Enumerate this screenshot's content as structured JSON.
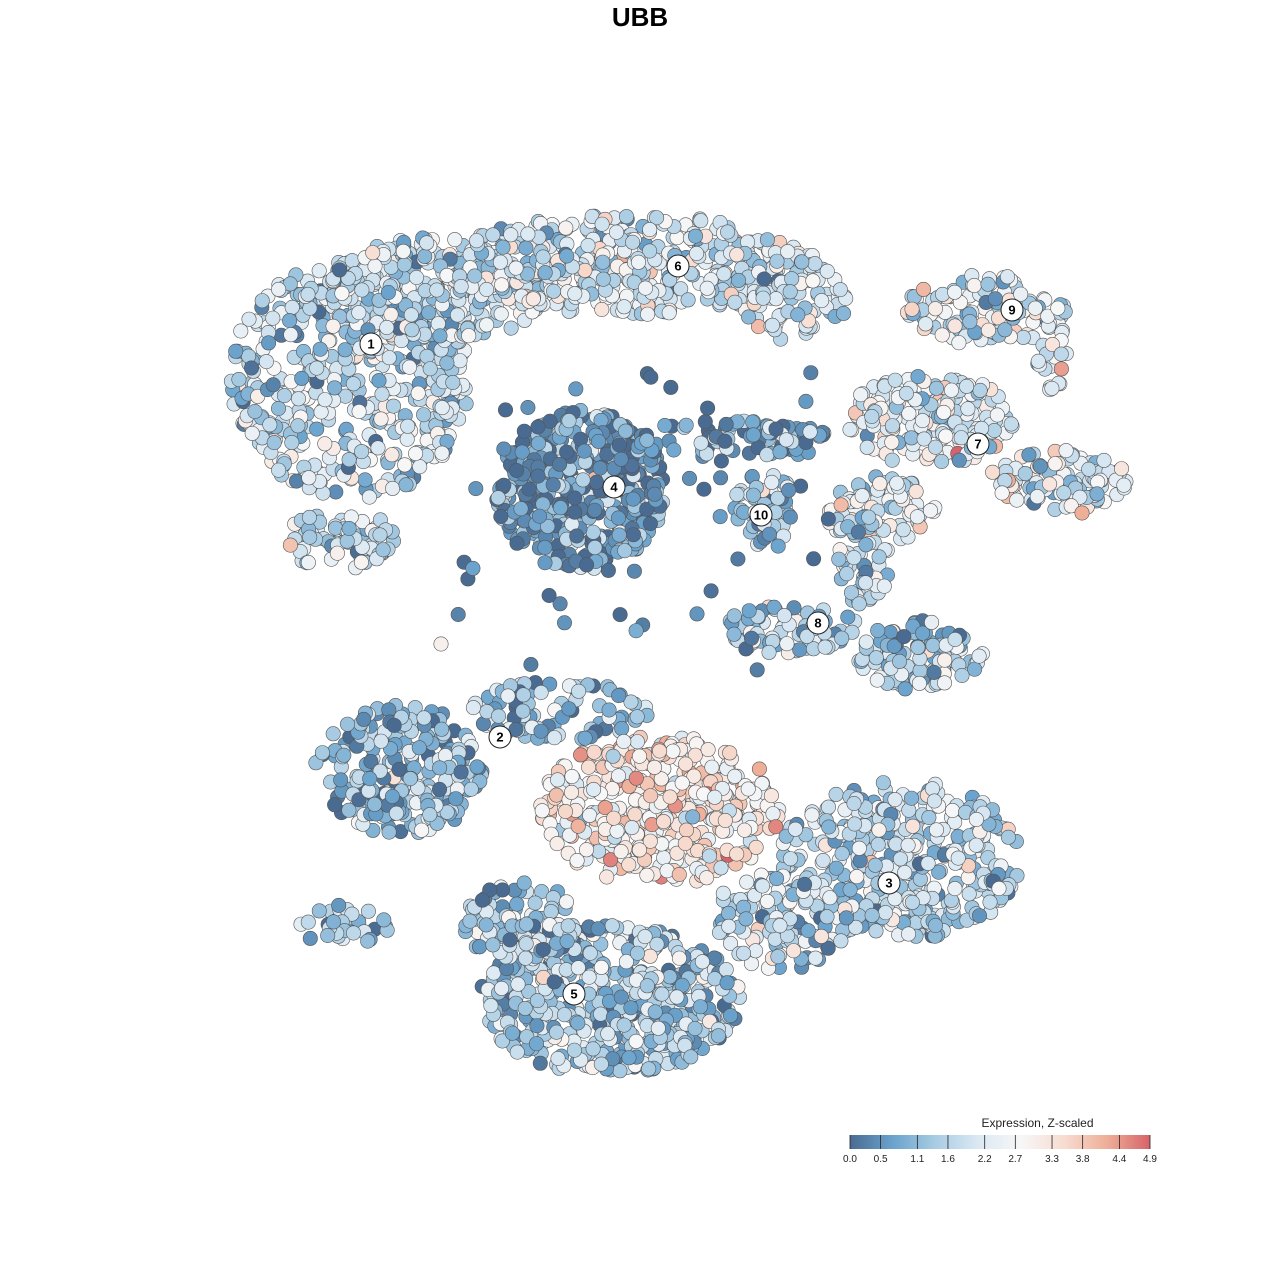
{
  "title": "UBB",
  "chart_data": {
    "type": "scatter",
    "title": "UBB",
    "color_variable": "Expression, Z-scaled",
    "color_range": [
      0.0,
      4.9
    ],
    "legend": {
      "title": "Expression, Z-scaled",
      "ticks": [
        "0.0",
        "0.5",
        "1.1",
        "1.6",
        "2.2",
        "2.7",
        "3.3",
        "3.8",
        "4.4",
        "4.9"
      ],
      "tick_values": [
        0.0,
        0.5,
        1.1,
        1.6,
        2.2,
        2.7,
        3.3,
        3.8,
        4.4,
        4.9
      ],
      "placement": "bottom-right"
    },
    "colormap": [
      "#4a6b91",
      "#6aa3cd",
      "#a9cce3",
      "#dbe9f3",
      "#f7f7f7",
      "#f7dcd0",
      "#eeae98",
      "#d6636a"
    ],
    "grid": false,
    "axes_visible": false,
    "clusters": [
      {
        "label": "1",
        "approx_mean_expression": 1.8
      },
      {
        "label": "2",
        "approx_mean_expression": 1.2
      },
      {
        "label": "3",
        "approx_mean_expression": 1.7
      },
      {
        "label": "4",
        "approx_mean_expression": 0.7
      },
      {
        "label": "5",
        "approx_mean_expression": 1.4
      },
      {
        "label": "6",
        "approx_mean_expression": 2.0
      },
      {
        "label": "7",
        "approx_mean_expression": 2.2
      },
      {
        "label": "8",
        "approx_mean_expression": 1.6
      },
      {
        "label": "9",
        "approx_mean_expression": 2.0
      },
      {
        "label": "10",
        "approx_mean_expression": 1.5
      }
    ],
    "high_expression_region": {
      "cluster": "2/5/3 interface",
      "approx_max_expression": 4.9
    }
  }
}
